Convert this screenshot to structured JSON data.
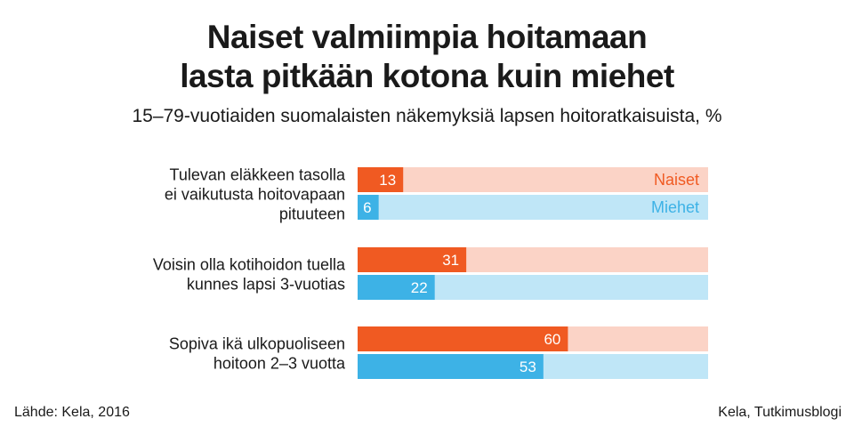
{
  "title_lines": [
    "Naiset valmiimpia hoitamaan",
    "lasta pitkään kotona kuin miehet"
  ],
  "subtitle": "15–79-vuotiaiden suomalaisten näkemyksiä lapsen hoitoratkaisuista, %",
  "source": "Lähde: Kela, 2016",
  "credit": "Kela, Tutkimusblogi",
  "colors": {
    "naiset": "#f05a22",
    "naiset_bg": "#fbd3c6",
    "miehet": "#3db2e6",
    "miehet_bg": "#bfe6f7",
    "label_text": "#1a1a1a",
    "value_text": "#ffffff"
  },
  "chart_data": {
    "type": "bar",
    "orientation": "horizontal",
    "xlim": [
      0,
      100
    ],
    "categories": [
      [
        "Tulevan eläkkeen tasolla",
        "ei vaikutusta hoitovapaan",
        "pituuteen"
      ],
      [
        "Voisin olla kotihoidon tuella",
        "kunnes lapsi 3-vuotias"
      ],
      [
        "Sopiva ikä ulkopuoliseen",
        "hoitoon 2–3 vuotta"
      ]
    ],
    "series": [
      {
        "name": "Naiset",
        "values": [
          13,
          31,
          60
        ]
      },
      {
        "name": "Miehet",
        "values": [
          6,
          22,
          53
        ]
      }
    ],
    "legend_placement": "inside-first-group-right"
  }
}
